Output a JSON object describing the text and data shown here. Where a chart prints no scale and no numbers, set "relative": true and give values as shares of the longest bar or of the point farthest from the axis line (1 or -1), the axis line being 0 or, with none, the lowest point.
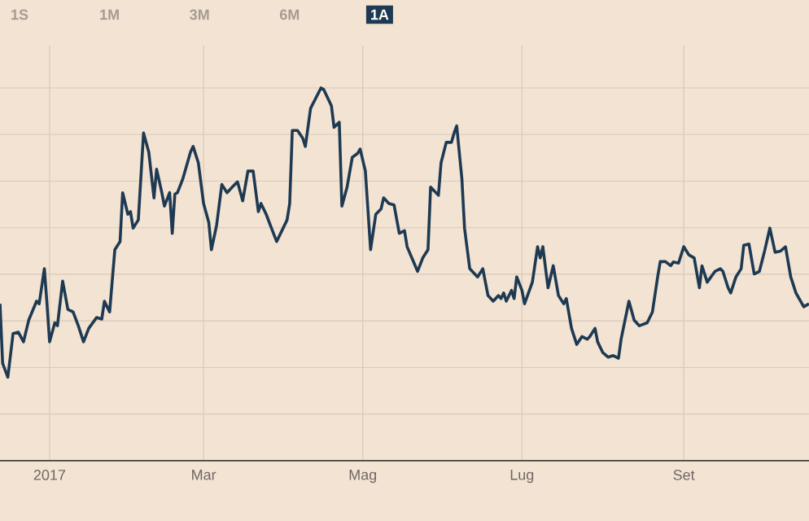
{
  "chart_data": {
    "type": "line",
    "relative": true,
    "grid": true,
    "marker": "none",
    "line_style": "solid",
    "color": "#1e3a52",
    "xlim": [
      "2016-12-13",
      "2017-10-19"
    ],
    "xticks": [
      {
        "value": "2017-01-01",
        "label": "2017"
      },
      {
        "value": "2017-03-01",
        "label": "Mar"
      },
      {
        "value": "2017-05-01",
        "label": "Mag"
      },
      {
        "value": "2017-07-01",
        "label": "Lug"
      },
      {
        "value": "2017-09-01",
        "label": "Set"
      }
    ],
    "annotations": [
      "1S",
      "1M",
      "3M",
      "6M",
      "1A"
    ],
    "x": [
      "2016-12-13",
      "2016-12-14",
      "2016-12-16",
      "2016-12-18",
      "2016-12-20",
      "2016-12-22",
      "2016-12-24",
      "2016-12-27",
      "2016-12-28",
      "2016-12-30",
      "2016-12-31",
      "2017-01-01",
      "2017-01-03",
      "2017-01-04",
      "2017-01-06",
      "2017-01-08",
      "2017-01-10",
      "2017-01-12",
      "2017-01-14",
      "2017-01-16",
      "2017-01-19",
      "2017-01-21",
      "2017-01-22",
      "2017-01-24",
      "2017-01-26",
      "2017-01-28",
      "2017-01-29",
      "2017-01-31",
      "2017-02-01",
      "2017-02-02",
      "2017-02-04",
      "2017-02-06",
      "2017-02-08",
      "2017-02-10",
      "2017-02-11",
      "2017-02-13",
      "2017-02-14",
      "2017-02-16",
      "2017-02-17",
      "2017-02-18",
      "2017-02-19",
      "2017-02-21",
      "2017-02-24",
      "2017-02-25",
      "2017-02-27",
      "2017-03-01",
      "2017-03-03",
      "2017-03-04",
      "2017-03-06",
      "2017-03-08",
      "2017-03-10",
      "2017-03-12",
      "2017-03-14",
      "2017-03-16",
      "2017-03-18",
      "2017-03-20",
      "2017-03-22",
      "2017-03-23",
      "2017-03-25",
      "2017-03-27",
      "2017-03-29",
      "2017-03-31",
      "2017-04-02",
      "2017-04-03",
      "2017-04-04",
      "2017-04-06",
      "2017-04-08",
      "2017-04-09",
      "2017-04-11",
      "2017-04-15",
      "2017-04-16",
      "2017-04-19",
      "2017-04-20",
      "2017-04-22",
      "2017-04-23",
      "2017-04-25",
      "2017-04-27",
      "2017-04-29",
      "2017-04-30",
      "2017-05-02",
      "2017-05-04",
      "2017-05-06",
      "2017-05-08",
      "2017-05-09",
      "2017-05-11",
      "2017-05-13",
      "2017-05-15",
      "2017-05-17",
      "2017-05-18",
      "2017-05-22",
      "2017-05-24",
      "2017-05-26",
      "2017-05-27",
      "2017-05-30",
      "2017-05-31",
      "2017-06-02",
      "2017-06-04",
      "2017-06-05",
      "2017-06-06",
      "2017-06-08",
      "2017-06-09",
      "2017-06-11",
      "2017-06-14",
      "2017-06-16",
      "2017-06-18",
      "2017-06-20",
      "2017-06-22",
      "2017-06-23",
      "2017-06-24",
      "2017-06-25",
      "2017-06-27",
      "2017-06-28",
      "2017-06-29",
      "2017-07-01",
      "2017-07-02",
      "2017-07-05",
      "2017-07-07",
      "2017-07-08",
      "2017-07-09",
      "2017-07-11",
      "2017-07-13",
      "2017-07-15",
      "2017-07-17",
      "2017-07-18",
      "2017-07-20",
      "2017-07-22",
      "2017-07-24",
      "2017-07-26",
      "2017-07-27",
      "2017-07-29",
      "2017-07-30",
      "2017-08-01",
      "2017-08-03",
      "2017-08-05",
      "2017-08-07",
      "2017-08-08",
      "2017-08-11",
      "2017-08-13",
      "2017-08-15",
      "2017-08-18",
      "2017-08-20",
      "2017-08-22",
      "2017-08-23",
      "2017-08-25",
      "2017-08-27",
      "2017-08-28",
      "2017-08-30",
      "2017-09-01",
      "2017-09-03",
      "2017-09-05",
      "2017-09-07",
      "2017-09-08",
      "2017-09-10",
      "2017-09-13",
      "2017-09-15",
      "2017-09-16",
      "2017-09-18",
      "2017-09-19",
      "2017-09-21",
      "2017-09-23",
      "2017-09-24",
      "2017-09-26",
      "2017-09-28",
      "2017-09-30",
      "2017-10-02",
      "2017-10-04",
      "2017-10-06",
      "2017-10-08",
      "2017-10-10",
      "2017-10-12",
      "2017-10-14",
      "2017-10-17",
      "2017-10-19"
    ],
    "values": [
      0.421,
      0.261,
      0.224,
      0.341,
      0.345,
      0.319,
      0.377,
      0.428,
      0.421,
      0.515,
      0.421,
      0.319,
      0.37,
      0.362,
      0.482,
      0.406,
      0.399,
      0.362,
      0.319,
      0.355,
      0.384,
      0.38,
      0.428,
      0.399,
      0.566,
      0.588,
      0.719,
      0.661,
      0.668,
      0.624,
      0.646,
      0.879,
      0.828,
      0.705,
      0.782,
      0.719,
      0.683,
      0.719,
      0.61,
      0.715,
      0.719,
      0.755,
      0.828,
      0.843,
      0.799,
      0.69,
      0.639,
      0.566,
      0.632,
      0.741,
      0.719,
      0.734,
      0.748,
      0.697,
      0.777,
      0.777,
      0.668,
      0.69,
      0.661,
      0.624,
      0.588,
      0.617,
      0.646,
      0.69,
      0.886,
      0.886,
      0.865,
      0.843,
      0.945,
      1.0,
      0.996,
      0.952,
      0.894,
      0.908,
      0.683,
      0.734,
      0.814,
      0.824,
      0.836,
      0.777,
      0.566,
      0.661,
      0.675,
      0.705,
      0.69,
      0.686,
      0.61,
      0.617,
      0.574,
      0.508,
      0.544,
      0.566,
      0.734,
      0.712,
      0.799,
      0.854,
      0.854,
      0.879,
      0.898,
      0.755,
      0.624,
      0.515,
      0.493,
      0.515,
      0.443,
      0.428,
      0.443,
      0.435,
      0.45,
      0.428,
      0.457,
      0.435,
      0.493,
      0.457,
      0.421,
      0.479,
      0.574,
      0.544,
      0.574,
      0.464,
      0.523,
      0.443,
      0.421,
      0.435,
      0.355,
      0.312,
      0.333,
      0.326,
      0.333,
      0.355,
      0.319,
      0.29,
      0.278,
      0.282,
      0.275,
      0.326,
      0.428,
      0.377,
      0.362,
      0.37,
      0.399,
      0.493,
      0.534,
      0.534,
      0.523,
      0.533,
      0.53,
      0.574,
      0.552,
      0.544,
      0.464,
      0.523,
      0.479,
      0.508,
      0.515,
      0.508,
      0.464,
      0.45,
      0.493,
      0.515,
      0.578,
      0.581,
      0.501,
      0.508,
      0.563,
      0.624,
      0.559,
      0.562,
      0.574,
      0.493,
      0.45,
      0.413,
      0.421
    ]
  }
}
